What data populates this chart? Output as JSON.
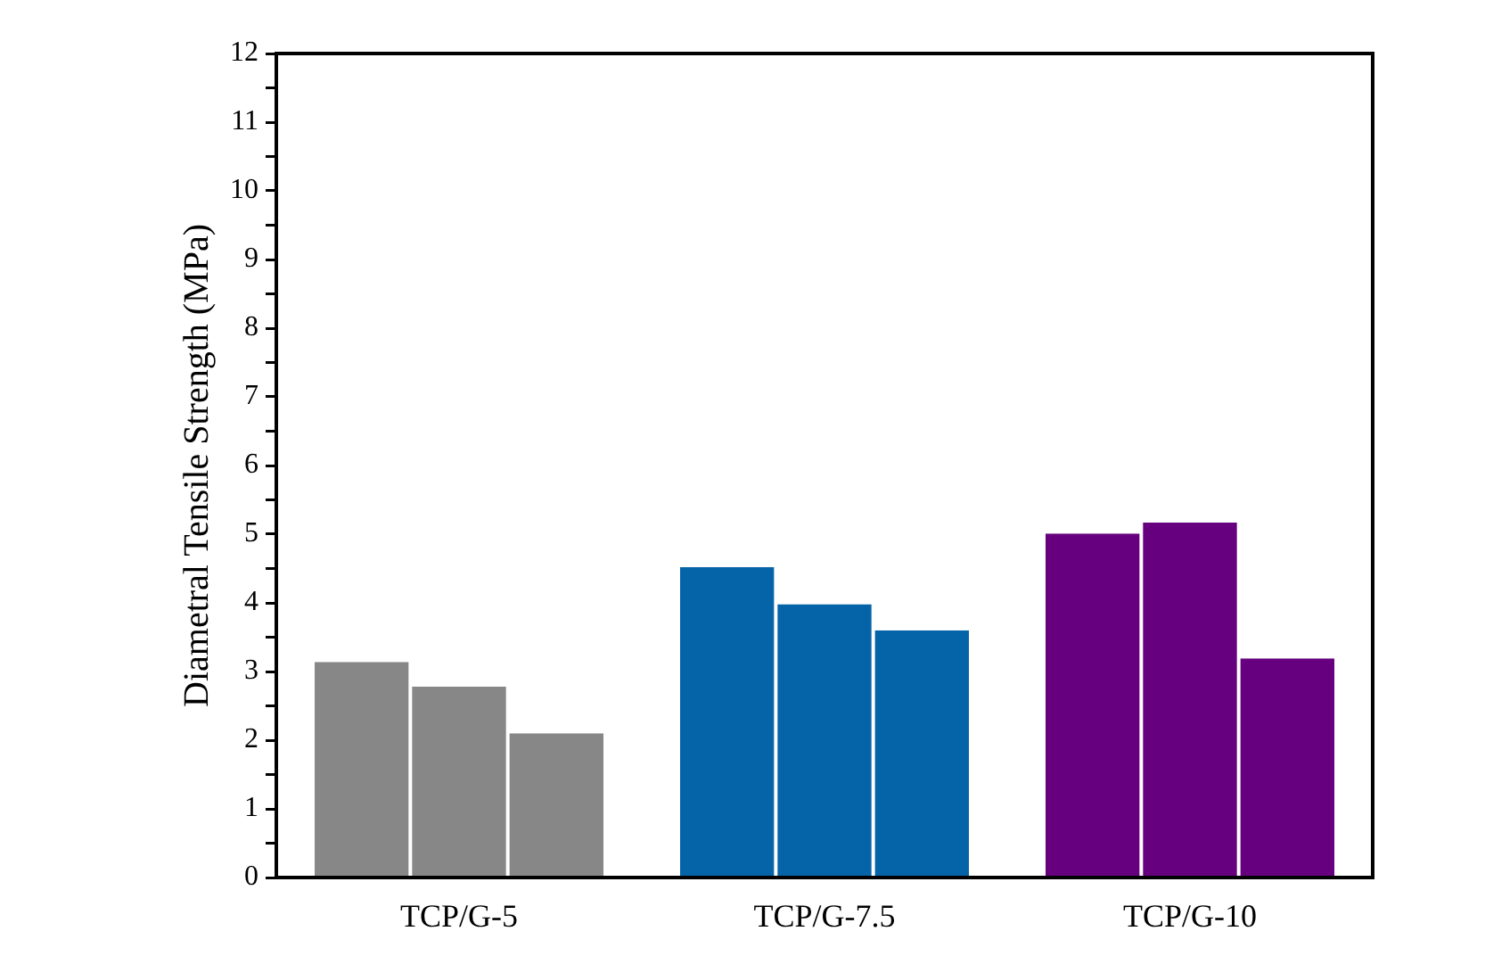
{
  "chart_data": {
    "type": "bar",
    "ylabel": "Diametral Tensile Strength (MPa)",
    "categories": [
      "TCP/G-5",
      "TCP/G-7.5",
      "TCP/G-10"
    ],
    "series": [
      {
        "colors": [
          "#878787",
          "#0563a8",
          "#66007f"
        ],
        "values": [
          3.14,
          4.52,
          5.01
        ]
      },
      {
        "colors": [
          "#878787",
          "#0563a8",
          "#66007f"
        ],
        "values": [
          2.78,
          3.98,
          5.17
        ]
      },
      {
        "colors": [
          "#878787",
          "#0563a8",
          "#66007f"
        ],
        "values": [
          2.1,
          3.6,
          3.19
        ]
      }
    ],
    "ylim": [
      0,
      12
    ],
    "yticks": [
      0,
      {
        "value": 0.5,
        "label": null
      },
      1,
      {
        "value": 1.5,
        "label": null
      },
      2,
      {
        "value": 2.5,
        "label": null
      },
      3,
      {
        "value": 3.5,
        "label": null
      },
      4,
      {
        "value": 4.5,
        "label": null
      },
      5,
      {
        "value": 5.5,
        "label": null
      },
      6,
      {
        "value": 6.5,
        "label": null
      },
      7,
      {
        "value": 7.5,
        "label": null
      },
      8,
      {
        "value": 8.5,
        "label": null
      },
      9,
      {
        "value": 9.5,
        "label": null
      },
      10,
      {
        "value": 10.5,
        "label": null
      },
      11,
      {
        "value": 11.5,
        "label": null
      },
      12
    ],
    "grid": false,
    "legend": false
  }
}
